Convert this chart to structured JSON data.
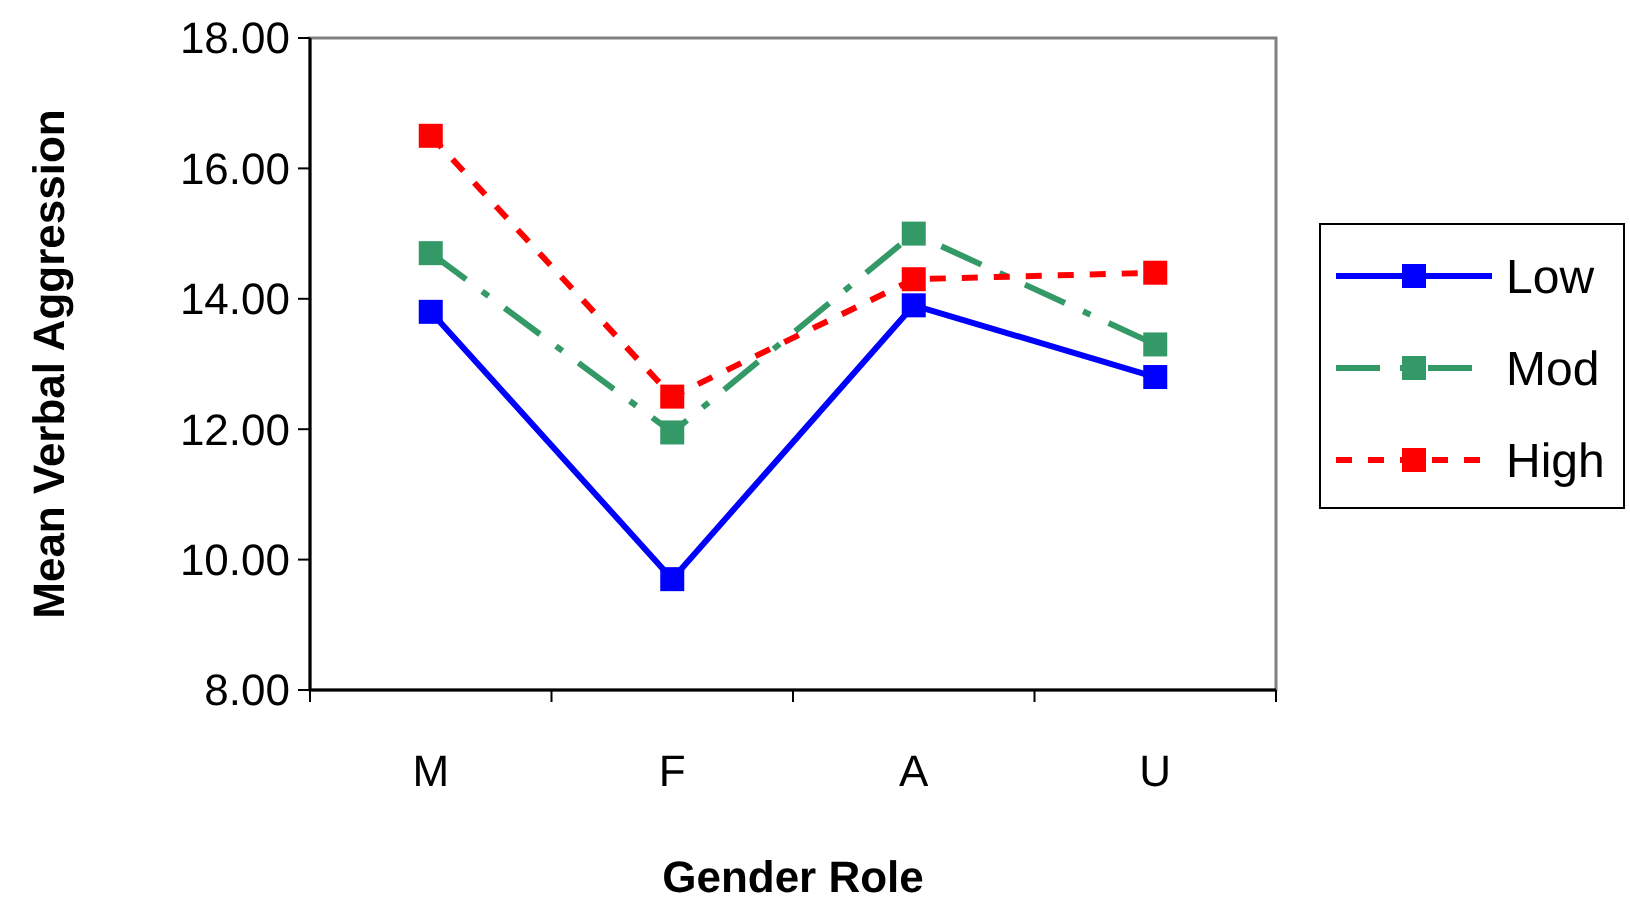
{
  "chart_data": {
    "type": "line",
    "xlabel": "Gender Role",
    "ylabel": "Mean Verbal Aggression",
    "categories": [
      "M",
      "F",
      "A",
      "U"
    ],
    "ylim": [
      8,
      18
    ],
    "yticks": [
      {
        "value": 8,
        "label": "8.00"
      },
      {
        "value": 10,
        "label": "10.00"
      },
      {
        "value": 12,
        "label": "12.00"
      },
      {
        "value": 14,
        "label": "14.00"
      },
      {
        "value": 16,
        "label": "16.00"
      },
      {
        "value": 18,
        "label": "18.00"
      }
    ],
    "grid": false,
    "legend": "right",
    "marker": "square",
    "series": [
      {
        "name": "Low",
        "color": "#0000ff",
        "line_style": "solid",
        "values": [
          13.8,
          9.7,
          13.9,
          12.8
        ]
      },
      {
        "name": "Mod",
        "color": "#339966",
        "line_style": "dashed",
        "values": [
          14.7,
          11.95,
          15.0,
          13.3
        ]
      },
      {
        "name": "High",
        "color": "#ff0000",
        "line_style": "dotted",
        "values": [
          16.5,
          12.5,
          14.3,
          14.4
        ]
      }
    ]
  }
}
